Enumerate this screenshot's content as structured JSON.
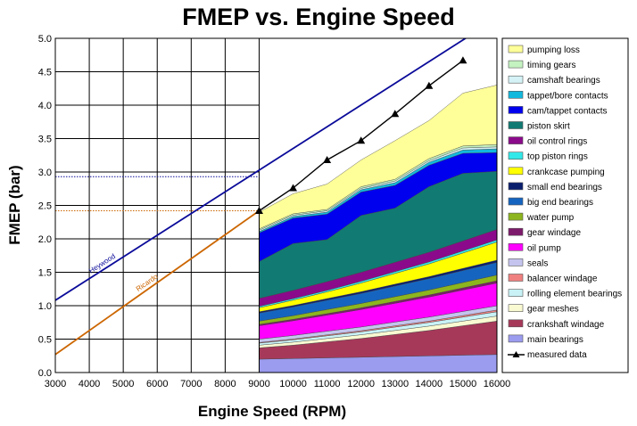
{
  "chart_data": {
    "type": "area",
    "title": "FMEP vs. Engine Speed",
    "xlabel": "Engine Speed (RPM)",
    "ylabel": "FMEP (bar)",
    "xlim": [
      3000,
      16000
    ],
    "ylim": [
      0,
      5
    ],
    "x_ticks": [
      "3000",
      "4000",
      "5000",
      "6000",
      "7000",
      "8000",
      "9000",
      "10000",
      "11000",
      "12000",
      "13000",
      "14000",
      "15000",
      "16000"
    ],
    "y_ticks": [
      "0.0",
      "0.5",
      "1.0",
      "1.5",
      "2.0",
      "2.5",
      "3.0",
      "3.5",
      "4.0",
      "4.5",
      "5.0"
    ],
    "grid": true,
    "legend_position": "right",
    "x": [
      9000,
      10000,
      11000,
      12000,
      13000,
      14000,
      15000,
      16000
    ],
    "series": [
      {
        "name": "main bearings",
        "color": "#9b9bef",
        "values": [
          0.2,
          0.21,
          0.22,
          0.23,
          0.24,
          0.25,
          0.26,
          0.27
        ]
      },
      {
        "name": "crankshaft windage",
        "color": "#a6395a",
        "values": [
          0.17,
          0.2,
          0.24,
          0.28,
          0.33,
          0.38,
          0.44,
          0.5
        ]
      },
      {
        "name": "gear meshes",
        "color": "#fafad2",
        "values": [
          0.04,
          0.045,
          0.05,
          0.055,
          0.06,
          0.065,
          0.07,
          0.075
        ]
      },
      {
        "name": "rolling element bearings",
        "color": "#c8f2f6",
        "values": [
          0.03,
          0.035,
          0.04,
          0.045,
          0.05,
          0.055,
          0.06,
          0.065
        ]
      },
      {
        "name": "balancer windage",
        "color": "#f08080",
        "values": [
          0.01,
          0.012,
          0.014,
          0.016,
          0.018,
          0.02,
          0.022,
          0.025
        ]
      },
      {
        "name": "seals",
        "color": "#c4c4ee",
        "values": [
          0.05,
          0.052,
          0.054,
          0.056,
          0.058,
          0.06,
          0.062,
          0.064
        ]
      },
      {
        "name": "oil pump",
        "color": "#ff00ff",
        "values": [
          0.2,
          0.22,
          0.24,
          0.26,
          0.28,
          0.3,
          0.32,
          0.34
        ]
      },
      {
        "name": "gear windage",
        "color": "#7d1a6b",
        "values": [
          0.02,
          0.022,
          0.024,
          0.026,
          0.028,
          0.03,
          0.032,
          0.034
        ]
      },
      {
        "name": "water pump",
        "color": "#8db51e",
        "values": [
          0.05,
          0.055,
          0.06,
          0.065,
          0.07,
          0.075,
          0.08,
          0.085
        ]
      },
      {
        "name": "big end bearings",
        "color": "#1565c0",
        "values": [
          0.12,
          0.13,
          0.14,
          0.15,
          0.16,
          0.17,
          0.18,
          0.19
        ]
      },
      {
        "name": "small end bearings",
        "color": "#0a1e6e",
        "values": [
          0.02,
          0.022,
          0.024,
          0.026,
          0.028,
          0.03,
          0.032,
          0.034
        ]
      },
      {
        "name": "crankcase pumping",
        "color": "#ffff00",
        "values": [
          0.06,
          0.08,
          0.1,
          0.13,
          0.16,
          0.19,
          0.23,
          0.27
        ]
      },
      {
        "name": "top piston rings",
        "color": "#33e8e8",
        "values": [
          0.02,
          0.022,
          0.024,
          0.026,
          0.028,
          0.03,
          0.032,
          0.034
        ]
      },
      {
        "name": "oil control rings",
        "color": "#8b0a8b",
        "values": [
          0.12,
          0.125,
          0.13,
          0.135,
          0.14,
          0.145,
          0.15,
          0.155
        ]
      },
      {
        "name": "piston skirt",
        "color": "#117a73",
        "values": [
          0.55,
          0.7,
          0.63,
          0.85,
          0.81,
          0.98,
          1.01,
          0.87
        ]
      },
      {
        "name": "cam/tappet contacts",
        "color": "#0000ee",
        "values": [
          0.43,
          0.38,
          0.38,
          0.35,
          0.34,
          0.32,
          0.3,
          0.28
        ]
      },
      {
        "name": "tappet/bore contacts",
        "color": "#13b8dd",
        "values": [
          0.02,
          0.025,
          0.03,
          0.035,
          0.04,
          0.045,
          0.05,
          0.055
        ]
      },
      {
        "name": "camshaft bearings",
        "color": "#d5f3f7",
        "values": [
          0.02,
          0.02,
          0.02,
          0.02,
          0.025,
          0.025,
          0.03,
          0.03
        ]
      },
      {
        "name": "timing gears",
        "color": "#c4f2c0",
        "values": [
          0.02,
          0.02,
          0.02,
          0.025,
          0.025,
          0.03,
          0.03,
          0.035
        ]
      },
      {
        "name": "pumping loss",
        "color": "#ffff99",
        "values": [
          0.25,
          0.3,
          0.38,
          0.4,
          0.58,
          0.57,
          0.79,
          0.89
        ]
      }
    ],
    "measured_data": {
      "name": "measured data",
      "color": "#000000",
      "x": [
        9000,
        10000,
        11000,
        12000,
        13000,
        14000,
        15000
      ],
      "y": [
        2.42,
        2.76,
        3.18,
        3.47,
        3.87,
        4.29,
        4.67
      ]
    },
    "reference_lines": [
      {
        "name": "Heywood",
        "color": "#0a0a9a",
        "x": [
          3000,
          16000
        ],
        "y": [
          1.08,
          5.3
        ]
      },
      {
        "name": "Ricardo",
        "color": "#cc6600",
        "x": [
          3000,
          9000
        ],
        "y": [
          0.27,
          2.42
        ]
      }
    ],
    "hlines": [
      {
        "color": "#0a0a9a",
        "y": 2.93
      },
      {
        "color": "#cc6600",
        "y": 2.42
      }
    ]
  }
}
